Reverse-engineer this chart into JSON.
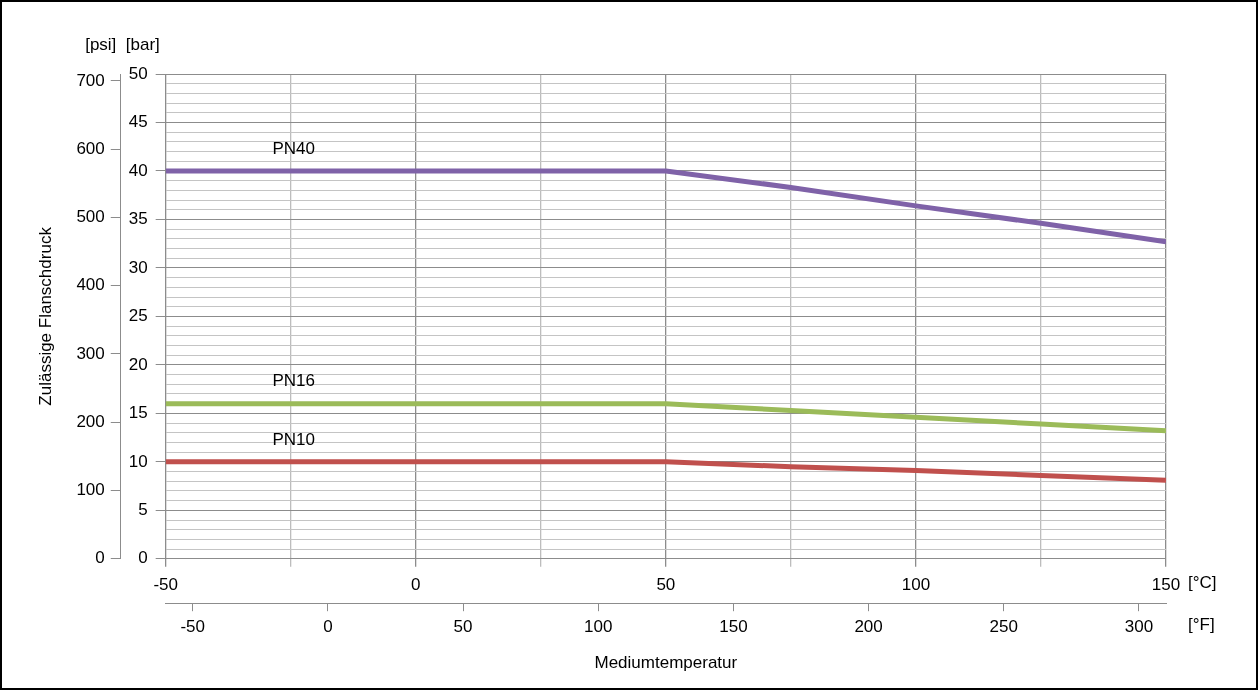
{
  "chart_data": {
    "type": "line",
    "y2label": "Zulässige Flanschdruck",
    "x2label": "Mediumtemperatur",
    "annotations": [
      "[psi]",
      "[bar]",
      "[°C]",
      "[°F]"
    ],
    "x": [
      -50,
      50,
      75,
      100,
      125,
      150
    ],
    "series": [
      {
        "name": "PN40",
        "color": "#7f62a8",
        "values": [
          40,
          40,
          38.3,
          36.4,
          34.6,
          32.7
        ]
      },
      {
        "name": "PN16",
        "color": "#9bbb59",
        "values": [
          16,
          16,
          15.3,
          14.6,
          13.9,
          13.2
        ]
      },
      {
        "name": "PN10",
        "color": "#c0504d",
        "values": [
          10,
          10,
          9.5,
          9.1,
          8.6,
          8.1
        ]
      }
    ],
    "xlim": [
      -50,
      150
    ],
    "xticks": [
      -50,
      {
        "value": -25,
        "label": null
      },
      0,
      {
        "value": 25,
        "label": null
      },
      50,
      {
        "value": 75,
        "label": null
      },
      100,
      {
        "value": 125,
        "label": null
      },
      150
    ],
    "x2lim": [
      -60,
      310
    ],
    "x2ticks": [
      -50,
      0,
      50,
      100,
      150,
      200,
      250,
      300
    ],
    "ylim": [
      0,
      50
    ],
    "yticks": [
      0,
      {
        "value": 1,
        "label": null
      },
      {
        "value": 2,
        "label": null
      },
      {
        "value": 3,
        "label": null
      },
      {
        "value": 4,
        "label": null
      },
      5,
      {
        "value": 6,
        "label": null
      },
      {
        "value": 7,
        "label": null
      },
      {
        "value": 8,
        "label": null
      },
      {
        "value": 9,
        "label": null
      },
      10,
      {
        "value": 11,
        "label": null
      },
      {
        "value": 12,
        "label": null
      },
      {
        "value": 13,
        "label": null
      },
      {
        "value": 14,
        "label": null
      },
      15,
      {
        "value": 16,
        "label": null
      },
      {
        "value": 17,
        "label": null
      },
      {
        "value": 18,
        "label": null
      },
      {
        "value": 19,
        "label": null
      },
      20,
      {
        "value": 21,
        "label": null
      },
      {
        "value": 22,
        "label": null
      },
      {
        "value": 23,
        "label": null
      },
      {
        "value": 24,
        "label": null
      },
      25,
      {
        "value": 26,
        "label": null
      },
      {
        "value": 27,
        "label": null
      },
      {
        "value": 28,
        "label": null
      },
      {
        "value": 29,
        "label": null
      },
      30,
      {
        "value": 31,
        "label": null
      },
      {
        "value": 32,
        "label": null
      },
      {
        "value": 33,
        "label": null
      },
      {
        "value": 34,
        "label": null
      },
      35,
      {
        "value": 36,
        "label": null
      },
      {
        "value": 37,
        "label": null
      },
      {
        "value": 38,
        "label": null
      },
      {
        "value": 39,
        "label": null
      },
      40,
      {
        "value": 41,
        "label": null
      },
      {
        "value": 42,
        "label": null
      },
      {
        "value": 43,
        "label": null
      },
      {
        "value": 44,
        "label": null
      },
      45,
      {
        "value": 46,
        "label": null
      },
      {
        "value": 47,
        "label": null
      },
      {
        "value": 48,
        "label": null
      },
      {
        "value": 49,
        "label": null
      },
      50
    ],
    "y2lim": [
      0,
      710
    ],
    "y2ticks": [
      0,
      100,
      200,
      300,
      400,
      500,
      600,
      700
    ],
    "grid": true,
    "legend": false,
    "marker": "none",
    "line_style": "solid"
  }
}
